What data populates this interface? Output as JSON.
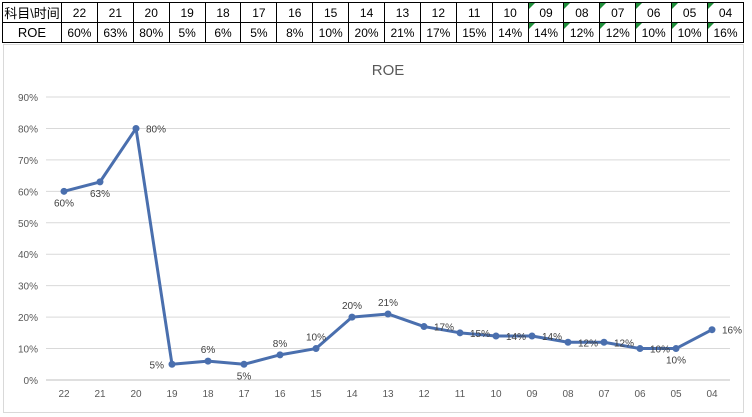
{
  "table": {
    "header_label": "科目\\时间",
    "row_label": "ROE",
    "years": [
      "22",
      "21",
      "20",
      "19",
      "18",
      "17",
      "16",
      "15",
      "14",
      "13",
      "12",
      "11",
      "10",
      "09",
      "08",
      "07",
      "06",
      "05",
      "04"
    ],
    "values": [
      "60%",
      "63%",
      "80%",
      "5%",
      "6%",
      "5%",
      "8%",
      "10%",
      "20%",
      "21%",
      "17%",
      "15%",
      "14%",
      "14%",
      "12%",
      "12%",
      "10%",
      "10%",
      "16%"
    ],
    "flag_color": "#1f8f3a"
  },
  "chart_data": {
    "type": "line",
    "title": "ROE",
    "xlabel": "",
    "ylabel": "",
    "categories": [
      "22",
      "21",
      "20",
      "19",
      "18",
      "17",
      "16",
      "15",
      "14",
      "13",
      "12",
      "11",
      "10",
      "09",
      "08",
      "07",
      "06",
      "05",
      "04"
    ],
    "series": [
      {
        "values": [
          60,
          63,
          80,
          5,
          6,
          5,
          8,
          10,
          20,
          21,
          17,
          15,
          14,
          14,
          12,
          12,
          10,
          10,
          16
        ],
        "labels": [
          "60%",
          "63%",
          "80%",
          "5%",
          "6%",
          "5%",
          "8%",
          "10%",
          "20%",
          "21%",
          "17%",
          "15%",
          "14%",
          "14%",
          "12%",
          "12%",
          "10%",
          "10%",
          "16%"
        ],
        "color": "#4a6fae"
      }
    ],
    "ylim": [
      0,
      90
    ],
    "yticks": [
      "0%",
      "10%",
      "20%",
      "30%",
      "40%",
      "50%",
      "60%",
      "70%",
      "80%",
      "90%"
    ],
    "grid": true,
    "legend": "none"
  }
}
